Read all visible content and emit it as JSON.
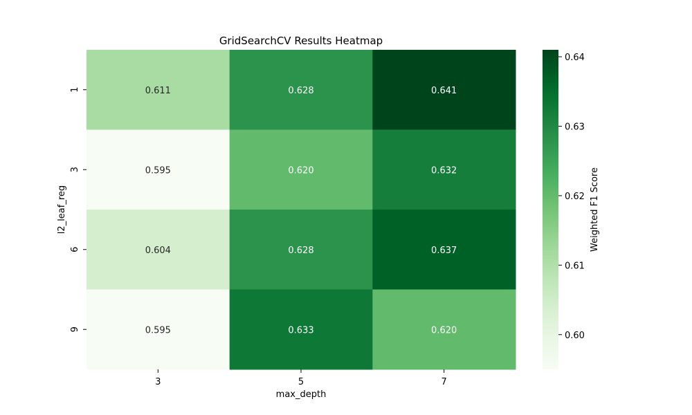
{
  "chart_data": {
    "type": "heatmap",
    "title": "GridSearchCV Results Heatmap",
    "xlabel": "max_depth",
    "ylabel": "l2_leaf_reg",
    "x_categories": [
      "3",
      "5",
      "7"
    ],
    "y_categories": [
      "1",
      "3",
      "6",
      "9"
    ],
    "values": [
      [
        0.611,
        0.628,
        0.641
      ],
      [
        0.595,
        0.62,
        0.632
      ],
      [
        0.604,
        0.628,
        0.637
      ],
      [
        0.595,
        0.633,
        0.62
      ]
    ],
    "annotation_format": "0.000",
    "colormap": "Greens",
    "colorbar": {
      "label": "Weighted F1 Score",
      "range": [
        0.595,
        0.641
      ],
      "ticks": [
        0.6,
        0.61,
        0.62,
        0.63,
        0.64
      ],
      "tick_labels": [
        "0.60",
        "0.61",
        "0.62",
        "0.63",
        "0.64"
      ]
    },
    "colors": {
      "light": "#f7fcf5",
      "dark": "#00441b",
      "text_dark": "#262626",
      "text_light": "#ffffff"
    }
  }
}
